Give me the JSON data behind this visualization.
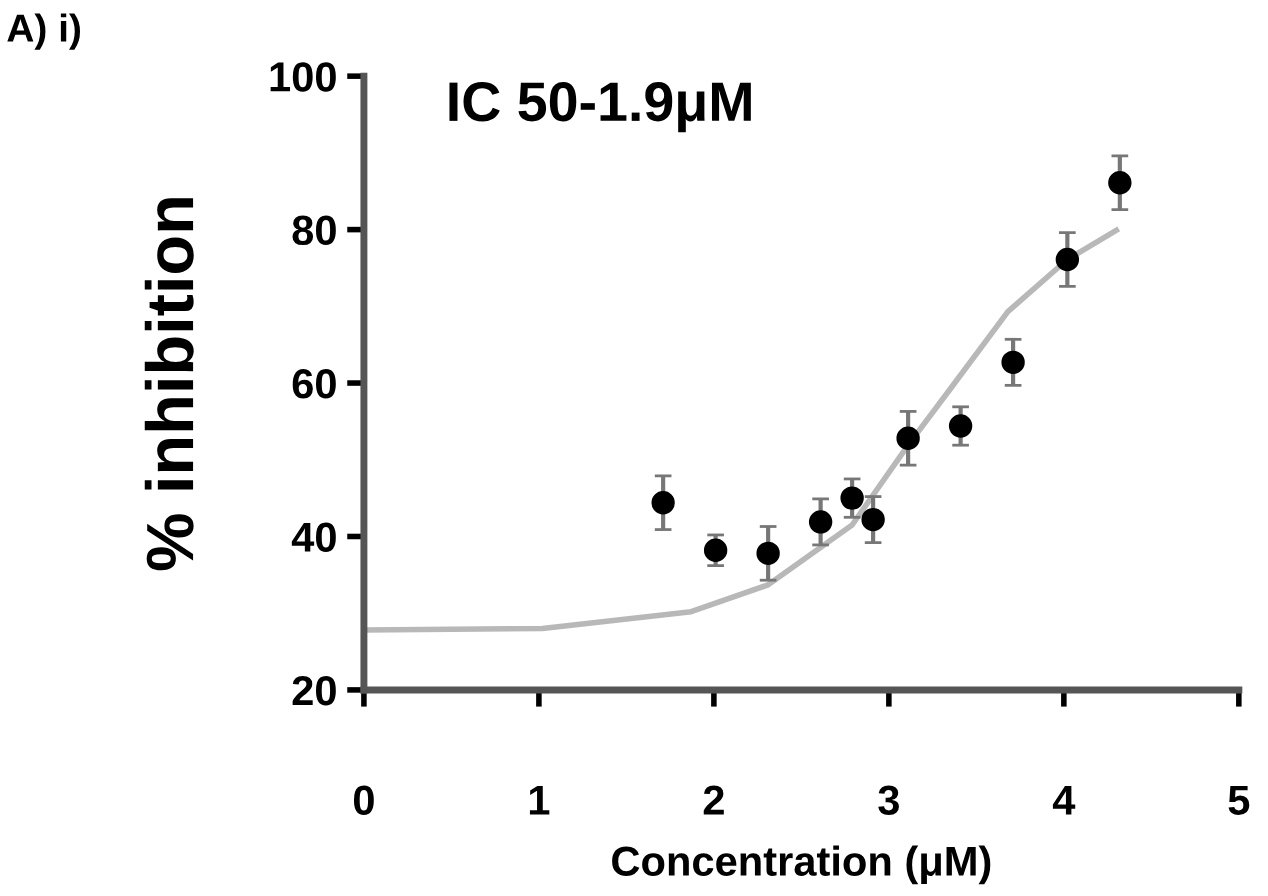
{
  "chart_data": {
    "type": "scatter",
    "title": "IC 50-1.9μM",
    "xlabel": "Concentration (μM)",
    "ylabel": "% inhibition",
    "annotations": [
      "A) i)"
    ],
    "xlim": [
      0,
      5
    ],
    "xticks": [
      0,
      1,
      2,
      3,
      4,
      5
    ],
    "ylim": [
      20,
      100
    ],
    "yticks": [
      20,
      40,
      60,
      80,
      100
    ],
    "grid": false,
    "legend": false,
    "series": [
      {
        "color": "#000000",
        "marker": "circle",
        "x": [
          1.71,
          2.01,
          2.31,
          2.61,
          2.79,
          2.91,
          3.11,
          3.41,
          3.71,
          4.02,
          4.32
        ],
        "values": [
          44.4,
          38.2,
          37.8,
          41.9,
          45.0,
          42.2,
          52.8,
          54.4,
          62.7,
          76.1,
          86.1
        ],
        "errors": [
          3.5,
          2,
          3.5,
          3,
          2.5,
          3,
          3.5,
          2.5,
          3,
          3.5,
          3.5
        ]
      },
      {
        "type": "line",
        "color": "#b8b8b8",
        "marker": "none",
        "line_style": "solid",
        "x": [
          0,
          1.02,
          1.87,
          2.31,
          2.79,
          3.11,
          3.34,
          3.68,
          4.02,
          4.3
        ],
        "values": [
          27.8,
          28.0,
          30.2,
          33.7,
          41.5,
          51.9,
          58.9,
          69.3,
          76.1,
          79.9
        ]
      }
    ]
  }
}
